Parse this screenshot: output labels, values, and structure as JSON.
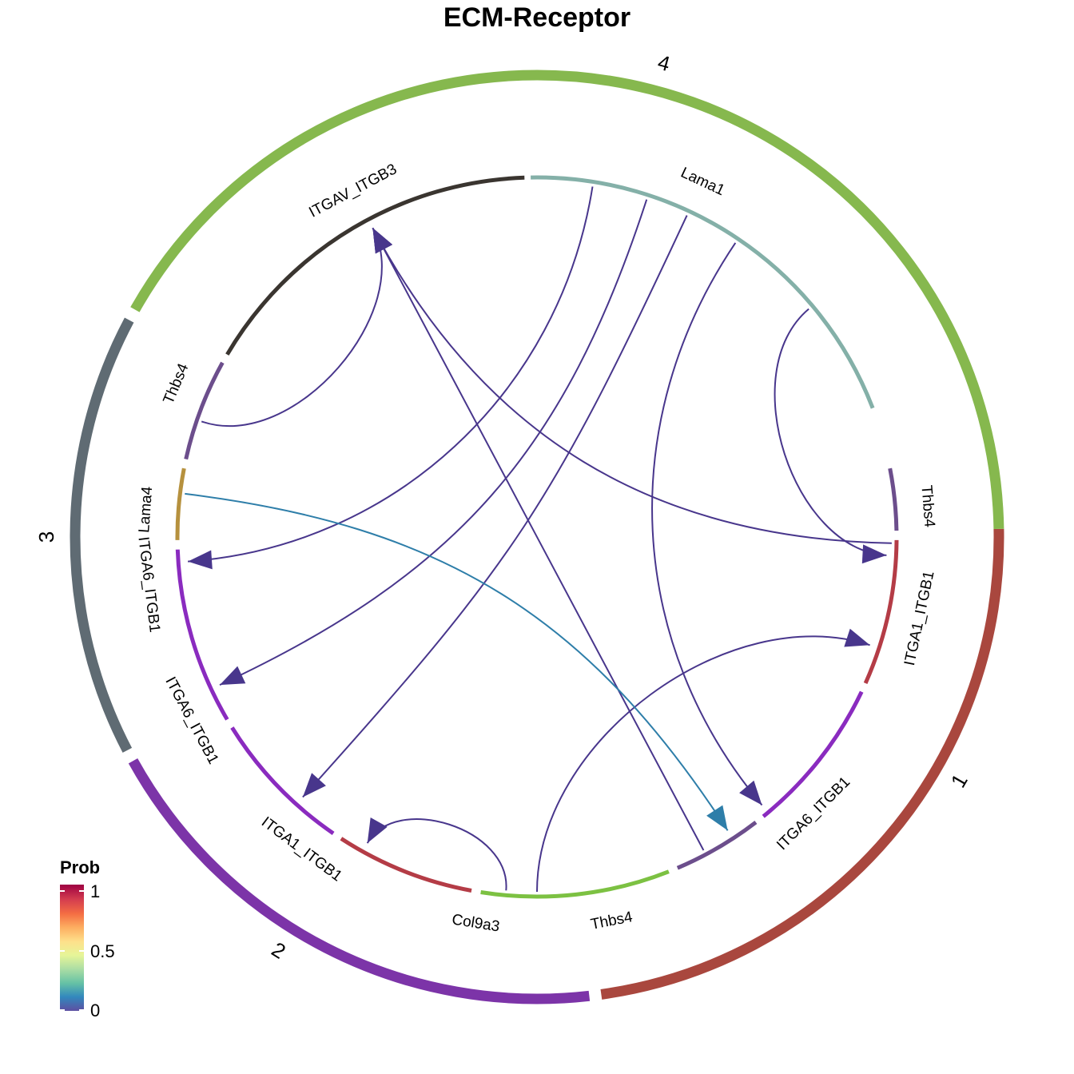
{
  "title": "ECM-Receptor",
  "colors": {
    "group_1": "#A9473E",
    "group_2": "#7C34A8",
    "group_3": "#5F6B73",
    "group_4": "#86B84E",
    "link_default": "#48368C",
    "link_highlight": "#2E7EA9"
  },
  "groups": [
    {
      "id": "1",
      "label": "1",
      "color": "#A9473E"
    },
    {
      "id": "2",
      "label": "2",
      "color": "#7C34A8"
    },
    {
      "id": "3",
      "label": "3",
      "color": "#5F6B73"
    },
    {
      "id": "4",
      "label": "4",
      "color": "#86B84E"
    }
  ],
  "sectors": [
    {
      "id": "s_thbs4_1",
      "label": "Thbs4",
      "group": "4",
      "color": "#6C4E8C"
    },
    {
      "id": "s_itga1_1",
      "label": "ITGA1_ITGB1",
      "group": "1",
      "color": "#B43C46"
    },
    {
      "id": "s_itga6_1",
      "label": "ITGA6_ITGB1",
      "group": "1",
      "color": "#8A2BBF"
    },
    {
      "id": "s_thbs4_2",
      "label": "Thbs4",
      "group": "2",
      "color": "#6C4E8C"
    },
    {
      "id": "s_col9a3",
      "label": "Col9a3",
      "group": "2",
      "color": "#7CC142"
    },
    {
      "id": "s_itga1_2",
      "label": "ITGA1_ITGB1",
      "group": "2",
      "color": "#B43C46"
    },
    {
      "id": "s_itga6_2",
      "label": "ITGA6_ITGB1",
      "group": "2",
      "color": "#8A2BBF"
    },
    {
      "id": "s_itga6_3",
      "label": "ITGA6_ITGB1",
      "group": "3",
      "color": "#8A2BBF"
    },
    {
      "id": "s_lama4",
      "label": "Lama4",
      "group": "3",
      "color": "#B6913E"
    },
    {
      "id": "s_thbs4_3",
      "label": "Thbs4",
      "group": "3",
      "color": "#6C4E8C"
    },
    {
      "id": "s_itgav",
      "label": "ITGAV_ITGB3",
      "group": "4",
      "color": "#3A3530"
    },
    {
      "id": "s_lama1",
      "label": "Lama1",
      "group": "4",
      "color": "#84B0A8"
    }
  ],
  "links": [
    {
      "source": "s_lama1",
      "target": "s_itga6_3",
      "prob": 0.04
    },
    {
      "source": "s_lama1",
      "target": "s_itga6_2",
      "prob": 0.04
    },
    {
      "source": "s_lama1",
      "target": "s_itga1_2",
      "prob": 0.04
    },
    {
      "source": "s_lama1",
      "target": "s_itga6_1",
      "prob": 0.04
    },
    {
      "source": "s_lama1",
      "target": "s_itga1_1",
      "prob": 0.04
    },
    {
      "source": "s_thbs4_1",
      "target": "s_itgav",
      "prob": 0.03
    },
    {
      "source": "s_thbs4_2",
      "target": "s_itgav",
      "prob": 0.03
    },
    {
      "source": "s_thbs4_3",
      "target": "s_itgav",
      "prob": 0.03
    },
    {
      "source": "s_col9a3",
      "target": "s_itga1_2",
      "prob": 0.04
    },
    {
      "source": "s_col9a3",
      "target": "s_itga1_1",
      "prob": 0.04
    },
    {
      "source": "s_lama4",
      "target": "s_itga6_1",
      "prob": 0.15
    }
  ],
  "legend": {
    "title": "Prob",
    "ticks": [
      "1",
      "0.5",
      "0"
    ],
    "stops": [
      "#9E0142",
      "#D53E4F",
      "#F46D43",
      "#FDAE61",
      "#FEE08B",
      "#E6F598",
      "#ABDDA4",
      "#66C2A5",
      "#3288BD",
      "#5E4FA2"
    ]
  }
}
